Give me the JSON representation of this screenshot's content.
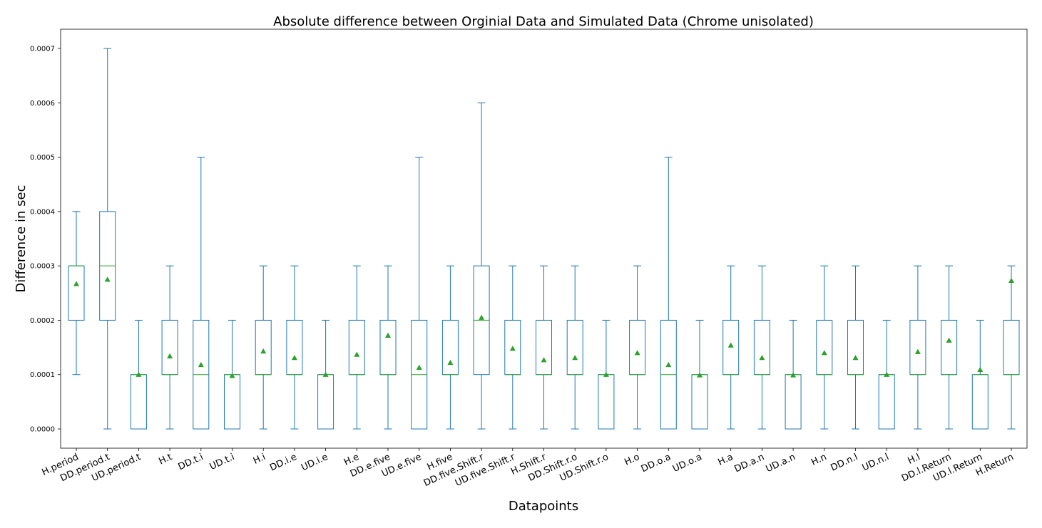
{
  "chart_data": {
    "type": "box",
    "title": "Absolute difference between Orginial Data and Simulated Data (Chrome unisolated)",
    "xlabel": "Datapoints",
    "ylabel": "Difference in sec",
    "ylim": [
      -3.5e-05,
      0.000735
    ],
    "yticks": [
      0.0,
      0.0001,
      0.0002,
      0.0003,
      0.0004,
      0.0005,
      0.0006,
      0.0007
    ],
    "ytick_labels": [
      "0.0000",
      "0.0001",
      "0.0002",
      "0.0003",
      "0.0004",
      "0.0005",
      "0.0006",
      "0.0007"
    ],
    "grid": false,
    "colors": {
      "box": "#1f77b4",
      "median": "#2ca02c",
      "mean": "#2ca02c"
    },
    "categories": [
      "H.period",
      "DD.period.t",
      "UD.period.t",
      "H.t",
      "DD.t.i",
      "UD.t.i",
      "H.i",
      "DD.i.e",
      "UD.i.e",
      "H.e",
      "DD.e.five",
      "UD.e.five",
      "H.five",
      "DD.five.Shift.r",
      "UD.five.Shift.r",
      "H.Shift.r",
      "DD.Shift.r.o",
      "UD.Shift.r.o",
      "H.o",
      "DD.o.a",
      "UD.o.a",
      "H.a",
      "DD.a.n",
      "UD.a.n",
      "H.n",
      "DD.n.l",
      "UD.n.l",
      "H.l",
      "DD.l.Return",
      "UD.l.Return",
      "H.Return"
    ],
    "whislo": [
      0.0001,
      0,
      0,
      0,
      0,
      0,
      0,
      0,
      0,
      0,
      0,
      0,
      0,
      0,
      0,
      0,
      0,
      0,
      0,
      0,
      0,
      0,
      0,
      0,
      0,
      0,
      0,
      0,
      0,
      0,
      0
    ],
    "q1": [
      0.0002,
      0.0002,
      0,
      0.0001,
      0,
      0,
      0.0001,
      0.0001,
      0,
      0.0001,
      0.0001,
      0,
      0.0001,
      0.0001,
      0.0001,
      0.0001,
      0.0001,
      0,
      0.0001,
      0,
      0,
      0.0001,
      0.0001,
      0,
      0.0001,
      0.0001,
      0,
      0.0001,
      0.0001,
      0,
      0.0001
    ],
    "median": [
      0.0003,
      0.0003,
      0.0001,
      0.0001,
      0.0001,
      0.0001,
      0.0001,
      0.0001,
      0.0001,
      0.0001,
      0.0001,
      0.0001,
      0.0001,
      0.0002,
      0.0001,
      0.0001,
      0.0001,
      0.0001,
      0.0001,
      0.0001,
      0.0001,
      0.0001,
      0.0001,
      0.0001,
      0.0001,
      0.0001,
      0.0001,
      0.0001,
      0.0001,
      0.0001,
      0.0001
    ],
    "q3": [
      0.0003,
      0.0004,
      0.0001,
      0.0002,
      0.0002,
      0.0001,
      0.0002,
      0.0002,
      0.0001,
      0.0002,
      0.0002,
      0.0002,
      0.0002,
      0.0003,
      0.0002,
      0.0002,
      0.0002,
      0.0001,
      0.0002,
      0.0002,
      0.0001,
      0.0002,
      0.0002,
      0.0001,
      0.0002,
      0.0002,
      0.0001,
      0.0002,
      0.0002,
      0.0001,
      0.0002
    ],
    "whishi": [
      0.0004,
      0.0007,
      0.0002,
      0.0003,
      0.0005,
      0.0002,
      0.0003,
      0.0003,
      0.0002,
      0.0003,
      0.0003,
      0.0005,
      0.0003,
      0.0006,
      0.0003,
      0.0003,
      0.0003,
      0.0002,
      0.0003,
      0.0005,
      0.0002,
      0.0003,
      0.0003,
      0.0002,
      0.0003,
      0.0003,
      0.0002,
      0.0003,
      0.0003,
      0.0002,
      0.0003
    ],
    "mean": [
      0.000267,
      0.000275,
      0.0001,
      0.000134,
      0.000118,
      9.8e-05,
      0.000143,
      0.000131,
      0.0001,
      0.000137,
      0.000172,
      0.000113,
      0.000122,
      0.000205,
      0.000148,
      0.000127,
      0.000131,
      0.0001,
      0.00014,
      0.000118,
      9.9e-05,
      0.000154,
      0.000131,
      9.9e-05,
      0.00014,
      0.000131,
      0.0001,
      0.000142,
      0.000163,
      0.000109,
      0.000273
    ]
  }
}
